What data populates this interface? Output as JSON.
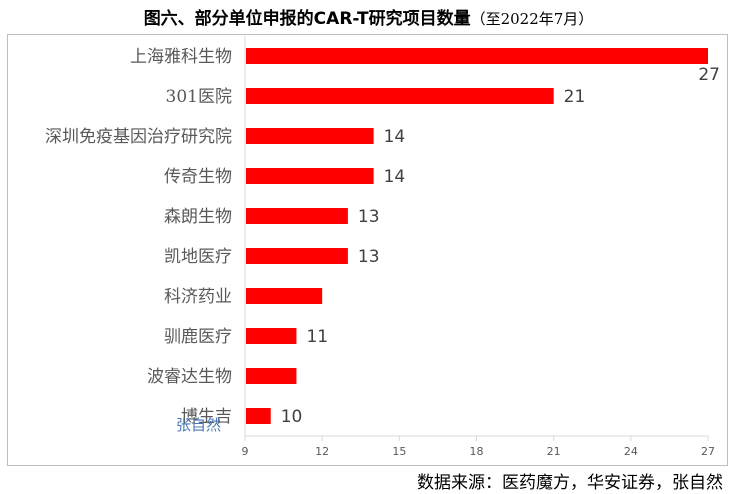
{
  "title": {
    "main": "图六、部分单位申报的CAR-T研究项目数量",
    "sub": "（至2022年7月）"
  },
  "source": "数据来源：医药魔方，华安证券，张自然",
  "watermark": "张自然",
  "chart_data": {
    "type": "bar",
    "orientation": "horizontal",
    "categories": [
      "上海雅科生物",
      "301医院",
      "深圳免疫基因治疗研究院",
      "传奇生物",
      "森朗生物",
      "凯地医疗",
      "科济药业",
      "驯鹿医疗",
      "波睿达生物",
      "博生吉"
    ],
    "values": [
      27,
      21,
      14,
      14,
      13,
      13,
      12,
      11,
      11,
      10
    ],
    "data_labels": [
      "27",
      "21",
      "14",
      "14",
      "13",
      "13",
      "",
      "11",
      "",
      "10"
    ],
    "xlim": [
      9,
      27
    ],
    "xticks": [
      9,
      12,
      15,
      18,
      21,
      24,
      27
    ],
    "bar_color": "#ff0000",
    "grid": false,
    "legend": "none"
  }
}
